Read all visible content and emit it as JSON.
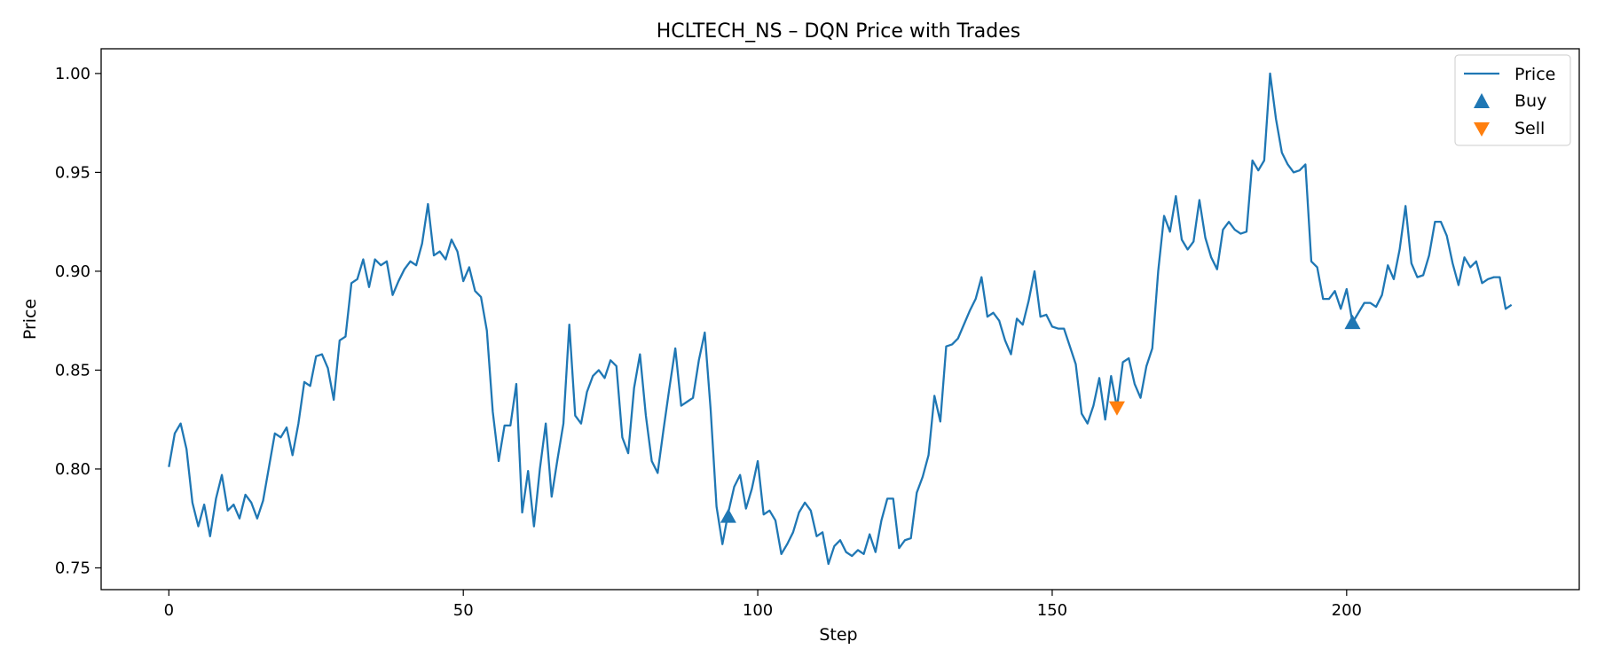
{
  "chart_data": {
    "type": "line",
    "title": "HCLTECH_NS – DQN Price with Trades",
    "xlabel": "Step",
    "ylabel": "Price",
    "xlim": [
      -11.5,
      239.5
    ],
    "ylim": [
      0.739,
      1.0125
    ],
    "xticks": [
      0,
      50,
      100,
      150,
      200
    ],
    "xtick_labels": [
      "0",
      "50",
      "100",
      "150",
      "200"
    ],
    "yticks": [
      0.75,
      0.8,
      0.85,
      0.9,
      0.95,
      1.0
    ],
    "ytick_labels": [
      "0.75",
      "0.80",
      "0.85",
      "0.90",
      "0.95",
      "1.00"
    ],
    "grid": false,
    "legend_position": "top-right",
    "legend": [
      "Price",
      "Buy",
      "Sell"
    ],
    "colors": {
      "price": "#1f77b4",
      "buy": "#1f77b4",
      "sell": "#ff7f0e"
    },
    "series": [
      {
        "name": "Price",
        "x_start": 0,
        "values": [
          0.801,
          0.818,
          0.823,
          0.81,
          0.783,
          0.771,
          0.782,
          0.766,
          0.785,
          0.797,
          0.779,
          0.782,
          0.775,
          0.787,
          0.783,
          0.775,
          0.784,
          0.801,
          0.818,
          0.816,
          0.821,
          0.807,
          0.823,
          0.844,
          0.842,
          0.857,
          0.858,
          0.851,
          0.835,
          0.865,
          0.867,
          0.894,
          0.896,
          0.906,
          0.892,
          0.906,
          0.903,
          0.905,
          0.888,
          0.895,
          0.901,
          0.905,
          0.903,
          0.914,
          0.934,
          0.908,
          0.91,
          0.906,
          0.916,
          0.91,
          0.895,
          0.902,
          0.89,
          0.887,
          0.87,
          0.829,
          0.804,
          0.822,
          0.822,
          0.843,
          0.778,
          0.799,
          0.771,
          0.8,
          0.823,
          0.786,
          0.805,
          0.823,
          0.873,
          0.827,
          0.823,
          0.839,
          0.847,
          0.85,
          0.846,
          0.855,
          0.852,
          0.816,
          0.808,
          0.841,
          0.858,
          0.827,
          0.804,
          0.798,
          0.82,
          0.841,
          0.861,
          0.832,
          0.834,
          0.836,
          0.855,
          0.869,
          0.83,
          0.781,
          0.762,
          0.778,
          0.791,
          0.797,
          0.78,
          0.79,
          0.804,
          0.777,
          0.779,
          0.774,
          0.757,
          0.762,
          0.768,
          0.778,
          0.783,
          0.779,
          0.766,
          0.768,
          0.752,
          0.761,
          0.764,
          0.758,
          0.756,
          0.759,
          0.757,
          0.767,
          0.758,
          0.774,
          0.785,
          0.785,
          0.76,
          0.764,
          0.765,
          0.788,
          0.796,
          0.807,
          0.837,
          0.824,
          0.862,
          0.863,
          0.866,
          0.873,
          0.88,
          0.886,
          0.897,
          0.877,
          0.879,
          0.875,
          0.865,
          0.858,
          0.876,
          0.873,
          0.885,
          0.9,
          0.877,
          0.878,
          0.872,
          0.871,
          0.871,
          0.862,
          0.853,
          0.828,
          0.823,
          0.832,
          0.846,
          0.825,
          0.847,
          0.831,
          0.854,
          0.856,
          0.843,
          0.836,
          0.852,
          0.861,
          0.9,
          0.928,
          0.92,
          0.938,
          0.916,
          0.911,
          0.915,
          0.936,
          0.917,
          0.907,
          0.901,
          0.921,
          0.925,
          0.921,
          0.919,
          0.92,
          0.956,
          0.951,
          0.956,
          1.0,
          0.977,
          0.96,
          0.954,
          0.95,
          0.951,
          0.954,
          0.905,
          0.902,
          0.886,
          0.886,
          0.89,
          0.881,
          0.891,
          0.874,
          0.879,
          0.884,
          0.884,
          0.882,
          0.888,
          0.903,
          0.896,
          0.911,
          0.933,
          0.904,
          0.897,
          0.898,
          0.908,
          0.925,
          0.925,
          0.918,
          0.904,
          0.893,
          0.907,
          0.902,
          0.905,
          0.894,
          0.896,
          0.897,
          0.897,
          0.881,
          0.883
        ]
      },
      {
        "name": "Buy",
        "kind": "scatter",
        "marker": "triangle-up",
        "points": [
          {
            "x": 95,
            "y": 0.776
          },
          {
            "x": 201,
            "y": 0.874
          }
        ]
      },
      {
        "name": "Sell",
        "kind": "scatter",
        "marker": "triangle-down",
        "points": [
          {
            "x": 161,
            "y": 0.831
          }
        ]
      }
    ]
  }
}
